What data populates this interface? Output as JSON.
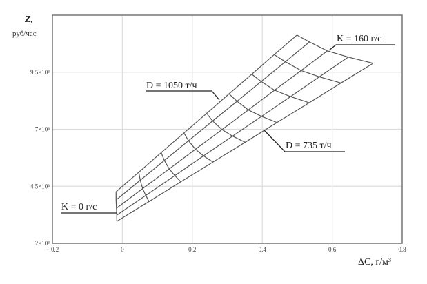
{
  "chart_data": {
    "type": "line",
    "title": "",
    "ylabel_main": "Z,",
    "ylabel_unit": "руб/час",
    "xlabel": "ΔC, г/м³",
    "xlim": [
      -0.2,
      0.8
    ],
    "ylim": [
      2000,
      12000
    ],
    "x_ticks": [
      -0.2,
      0,
      0.2,
      0.4,
      0.6,
      0.8
    ],
    "x_tick_labels": [
      "− 0.2",
      "0",
      "0.2",
      "0.4",
      "0.6",
      "0.8"
    ],
    "y_ticks": [
      2000,
      4500,
      7000,
      9500
    ],
    "y_tick_labels": [
      "2×10³",
      "4.5×10³",
      "7×10³",
      "9.5×10³"
    ],
    "grid": true,
    "line_color": "#555555",
    "grid_color": "#dddddd",
    "k_values": [
      0,
      20,
      40,
      60,
      80,
      100,
      120,
      140,
      160
    ],
    "series": [
      {
        "x": [
          -0.018,
          0.047,
          0.111,
          0.176,
          0.241,
          0.305,
          0.37,
          0.434,
          0.499
        ],
        "y": [
          4259,
          5118,
          5976,
          6835,
          7693,
          8552,
          9410,
          10269,
          11127
        ]
      },
      {
        "x": [
          -0.018,
          0.051,
          0.12,
          0.189,
          0.258,
          0.328,
          0.397,
          0.466,
          0.535
        ],
        "y": [
          3898,
          4764,
          5630,
          6496,
          7362,
          8227,
          9093,
          9959,
          10825
        ]
      },
      {
        "x": [
          -0.017,
          0.058,
          0.134,
          0.209,
          0.285,
          0.36,
          0.435,
          0.511,
          0.586
        ],
        "y": [
          3536,
          4398,
          5261,
          6123,
          6985,
          7847,
          8710,
          9572,
          10434
        ]
      },
      {
        "x": [
          -0.016,
          0.067,
          0.15,
          0.232,
          0.315,
          0.398,
          0.481,
          0.563,
          0.646
        ],
        "y": [
          3235,
          4101,
          4967,
          5833,
          6699,
          7565,
          8431,
          9297,
          10163
        ]
      },
      {
        "x": [
          -0.016,
          0.076,
          0.167,
          0.259,
          0.351,
          0.442,
          0.534,
          0.625,
          0.717
        ],
        "y": [
          2964,
          3830,
          4696,
          5562,
          6428,
          7294,
          8160,
          9026,
          9892
        ]
      }
    ],
    "annotations": {
      "k0": "K = 0 г/с",
      "k160": "K = 160 г/с",
      "d1050": "D = 1050 т/ч",
      "d735": "D = 735 т/ч"
    }
  }
}
